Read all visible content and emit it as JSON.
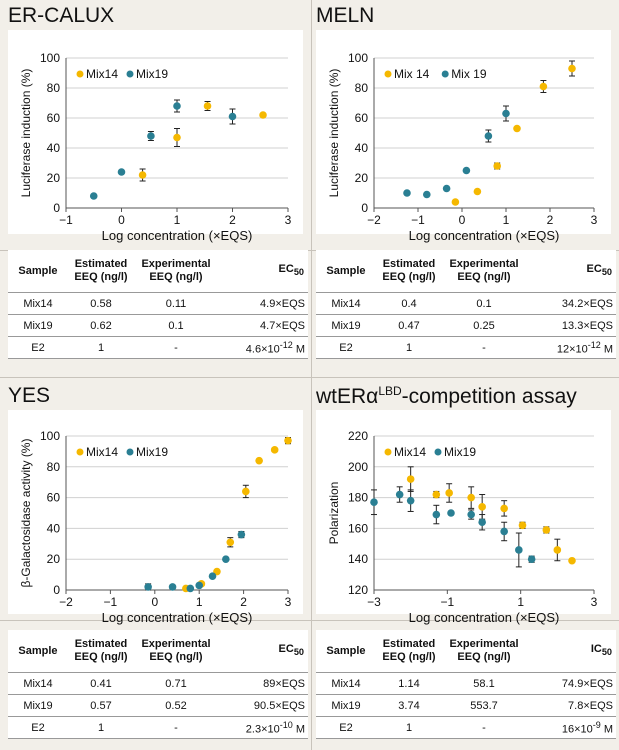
{
  "colors": {
    "mix14": "#f5b800",
    "mix19": "#2a7f93",
    "error": "#222222",
    "grid": "#d0d0d0",
    "axis": "#555555"
  },
  "panels": [
    {
      "id": "er-calux",
      "title": "ER-CALUX",
      "title_sup": "",
      "title_tail": "",
      "chart_data": {
        "type": "scatter",
        "title": "ER-CALUX",
        "xlabel": "Log concentration (×EQS)",
        "ylabel": "Luciferase induction (%)",
        "xlim": [
          -1,
          3
        ],
        "ylim": [
          0,
          100
        ],
        "xticks": [
          -1,
          0,
          1,
          2,
          3
        ],
        "yticks": [
          0,
          20,
          40,
          60,
          80,
          100
        ],
        "grid": true,
        "legend": "top-left",
        "series": [
          {
            "name": "Mix14",
            "color": "#f5b800",
            "points": [
              {
                "x": 0.38,
                "y": 22,
                "err": 4
              },
              {
                "x": 1.0,
                "y": 47,
                "err": 6
              },
              {
                "x": 1.55,
                "y": 68,
                "err": 3
              },
              {
                "x": 2.55,
                "y": 62,
                "err": 1
              }
            ]
          },
          {
            "name": "Mix19",
            "color": "#2a7f93",
            "points": [
              {
                "x": -0.5,
                "y": 8,
                "err": 0
              },
              {
                "x": 0.0,
                "y": 24,
                "err": 0
              },
              {
                "x": 0.53,
                "y": 48,
                "err": 3
              },
              {
                "x": 1.0,
                "y": 68,
                "err": 4
              },
              {
                "x": 2.0,
                "y": 61,
                "err": 5
              }
            ]
          }
        ]
      },
      "table": {
        "headers": [
          "Sample",
          "Estimated EEQ (ng/l)",
          "Experimental EEQ (ng/l)",
          "EC50"
        ],
        "rows": [
          [
            "Mix14",
            "0.58",
            "0.11",
            "4.9×EQS"
          ],
          [
            "Mix19",
            "0.62",
            "0.1",
            "4.7×EQS"
          ],
          [
            "E2",
            "1",
            "-",
            "4.6×10-12 M"
          ]
        ]
      }
    },
    {
      "id": "meln",
      "title": "MELN",
      "title_sup": "",
      "title_tail": "",
      "chart_data": {
        "type": "scatter",
        "title": "MELN",
        "xlabel": "Log concentration (×EQS)",
        "ylabel": "Luciferase induction (%)",
        "xlim": [
          -2,
          3
        ],
        "ylim": [
          0,
          100
        ],
        "xticks": [
          -2,
          -1,
          0,
          1,
          2,
          3
        ],
        "yticks": [
          0,
          20,
          40,
          60,
          80,
          100
        ],
        "grid": true,
        "legend": "top-left",
        "series": [
          {
            "name": "Mix 14",
            "color": "#f5b800",
            "points": [
              {
                "x": -0.15,
                "y": 4,
                "err": 0
              },
              {
                "x": 0.35,
                "y": 11,
                "err": 0
              },
              {
                "x": 0.8,
                "y": 28,
                "err": 2
              },
              {
                "x": 1.25,
                "y": 53,
                "err": 1
              },
              {
                "x": 1.85,
                "y": 81,
                "err": 4
              },
              {
                "x": 2.5,
                "y": 93,
                "err": 5
              }
            ]
          },
          {
            "name": "Mix 19",
            "color": "#2a7f93",
            "points": [
              {
                "x": -1.25,
                "y": 10,
                "err": 0
              },
              {
                "x": -0.8,
                "y": 9,
                "err": 0
              },
              {
                "x": -0.35,
                "y": 13,
                "err": 0
              },
              {
                "x": 0.1,
                "y": 25,
                "err": 0
              },
              {
                "x": 0.6,
                "y": 48,
                "err": 4
              },
              {
                "x": 1.0,
                "y": 63,
                "err": 5
              }
            ]
          }
        ]
      },
      "table": {
        "headers": [
          "Sample",
          "Estimated EEQ (ng/l)",
          "Experimental EEQ (ng/l)",
          "EC50"
        ],
        "rows": [
          [
            "Mix14",
            "0.4",
            "0.1",
            "34.2×EQS"
          ],
          [
            "Mix19",
            "0.47",
            "0.25",
            "13.3×EQS"
          ],
          [
            "E2",
            "1",
            "-",
            "12×10-12 M"
          ]
        ]
      }
    },
    {
      "id": "yes",
      "title": "YES",
      "title_sup": "",
      "title_tail": "",
      "chart_data": {
        "type": "scatter",
        "title": "YES",
        "xlabel": "Log concentration (×EQS)",
        "ylabel": "β-Galactosidase activity (%)",
        "xlim": [
          -2,
          3
        ],
        "ylim": [
          0,
          100
        ],
        "xticks": [
          -2,
          -1,
          0,
          1,
          2,
          3
        ],
        "yticks": [
          0,
          20,
          40,
          60,
          80,
          100
        ],
        "grid": true,
        "legend": "top-left",
        "series": [
          {
            "name": "Mix14",
            "color": "#f5b800",
            "points": [
              {
                "x": 0.7,
                "y": 1,
                "err": 0
              },
              {
                "x": 1.05,
                "y": 4,
                "err": 0
              },
              {
                "x": 1.4,
                "y": 12,
                "err": 0
              },
              {
                "x": 1.7,
                "y": 31,
                "err": 3
              },
              {
                "x": 2.05,
                "y": 64,
                "err": 4
              },
              {
                "x": 2.35,
                "y": 84,
                "err": 0
              },
              {
                "x": 2.7,
                "y": 91,
                "err": 0
              },
              {
                "x": 3.0,
                "y": 97,
                "err": 2
              }
            ]
          },
          {
            "name": "Mix19",
            "color": "#2a7f93",
            "points": [
              {
                "x": -0.15,
                "y": 2,
                "err": 2
              },
              {
                "x": 0.4,
                "y": 2,
                "err": 1
              },
              {
                "x": 0.8,
                "y": 1,
                "err": 0
              },
              {
                "x": 1.0,
                "y": 3,
                "err": 0
              },
              {
                "x": 1.3,
                "y": 9,
                "err": 0
              },
              {
                "x": 1.6,
                "y": 20,
                "err": 0
              },
              {
                "x": 1.95,
                "y": 36,
                "err": 2
              }
            ]
          }
        ]
      },
      "table": {
        "headers": [
          "Sample",
          "Estimated EEQ (ng/l)",
          "Experimental EEQ (ng/l)",
          "EC50"
        ],
        "rows": [
          [
            "Mix14",
            "0.41",
            "0.71",
            "89×EQS"
          ],
          [
            "Mix19",
            "0.57",
            "0.52",
            "90.5×EQS"
          ],
          [
            "E2",
            "1",
            "-",
            "2.3×10-10 M"
          ]
        ]
      }
    },
    {
      "id": "wter",
      "title": "wtERα",
      "title_sup": "LBD",
      "title_tail": "-competition assay",
      "chart_data": {
        "type": "scatter",
        "title": "wtERαLBD-competition assay",
        "xlabel": "Log concentration (×EQS)",
        "ylabel": "Polarization",
        "xlim": [
          -3,
          3
        ],
        "ylim": [
          120,
          220
        ],
        "xticks": [
          -3,
          -1,
          1,
          3
        ],
        "yticks": [
          120,
          140,
          160,
          180,
          200,
          220
        ],
        "grid": true,
        "legend": "top-left",
        "series": [
          {
            "name": "Mix14",
            "color": "#f5b800",
            "points": [
              {
                "x": -2.0,
                "y": 192,
                "err": 8
              },
              {
                "x": -1.3,
                "y": 182,
                "err": 2
              },
              {
                "x": -0.95,
                "y": 183,
                "err": 6
              },
              {
                "x": -0.35,
                "y": 180,
                "err": 7
              },
              {
                "x": -0.05,
                "y": 174,
                "err": 8
              },
              {
                "x": 0.55,
                "y": 173,
                "err": 5
              },
              {
                "x": 1.05,
                "y": 162,
                "err": 2
              },
              {
                "x": 1.7,
                "y": 159,
                "err": 2
              },
              {
                "x": 2.0,
                "y": 146,
                "err": 7
              },
              {
                "x": 2.4,
                "y": 139,
                "err": 0
              }
            ]
          },
          {
            "name": "Mix19",
            "color": "#2a7f93",
            "points": [
              {
                "x": -3.0,
                "y": 177,
                "err": 8
              },
              {
                "x": -2.3,
                "y": 182,
                "err": 5
              },
              {
                "x": -2.0,
                "y": 178,
                "err": 7
              },
              {
                "x": -1.3,
                "y": 169,
                "err": 6
              },
              {
                "x": -0.9,
                "y": 170,
                "err": 0
              },
              {
                "x": -0.35,
                "y": 169,
                "err": 3
              },
              {
                "x": -0.05,
                "y": 164,
                "err": 5
              },
              {
                "x": 0.55,
                "y": 158,
                "err": 6
              },
              {
                "x": 0.95,
                "y": 146,
                "err": 11
              },
              {
                "x": 1.3,
                "y": 140,
                "err": 2
              }
            ]
          }
        ]
      },
      "table": {
        "headers": [
          "Sample",
          "Estimated EEQ (ng/l)",
          "Experimental EEQ (ng/l)",
          "IC50"
        ],
        "rows": [
          [
            "Mix14",
            "1.14",
            "58.1",
            "74.9×EQS"
          ],
          [
            "Mix19",
            "3.74",
            "553.7",
            "7.8×EQS"
          ],
          [
            "E2",
            "1",
            "-",
            "16×10-9 M"
          ]
        ]
      }
    }
  ]
}
